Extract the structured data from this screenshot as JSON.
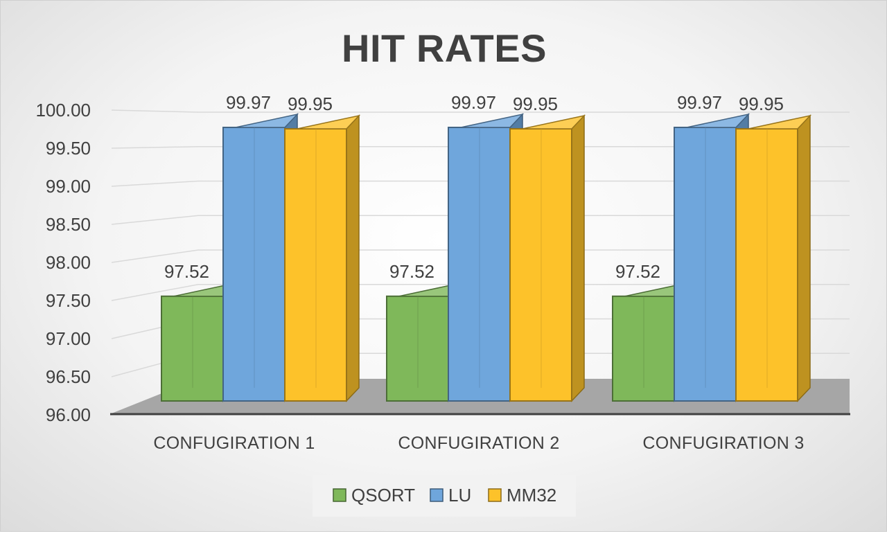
{
  "chart_data": {
    "type": "bar",
    "title": "HIT RATES",
    "categories": [
      "CONFUGIRATION 1",
      "CONFUGIRATION 2",
      "CONFUGIRATION 3"
    ],
    "series": [
      {
        "name": "QSORT",
        "values": [
          97.52,
          97.52,
          97.52
        ],
        "labels": [
          "97.52",
          "97.52",
          "97.52"
        ],
        "color": "#7fb85a"
      },
      {
        "name": "LU",
        "values": [
          99.97,
          99.97,
          99.97
        ],
        "labels": [
          "99.97",
          "99.97",
          "99.97"
        ],
        "color": "#6fa6dc"
      },
      {
        "name": "MM32",
        "values": [
          99.95,
          99.95,
          99.95
        ],
        "labels": [
          "99.95",
          "99.95",
          "99.95"
        ],
        "color": "#fdc22a"
      }
    ],
    "yticks": [
      "96.00",
      "96.50",
      "97.00",
      "97.50",
      "98.00",
      "98.50",
      "99.00",
      "99.50",
      "100.00"
    ],
    "ylim": [
      96,
      100
    ],
    "xlabel": "",
    "ylabel": "",
    "legend_position": "bottom",
    "grid": true,
    "style": "3d-column"
  }
}
